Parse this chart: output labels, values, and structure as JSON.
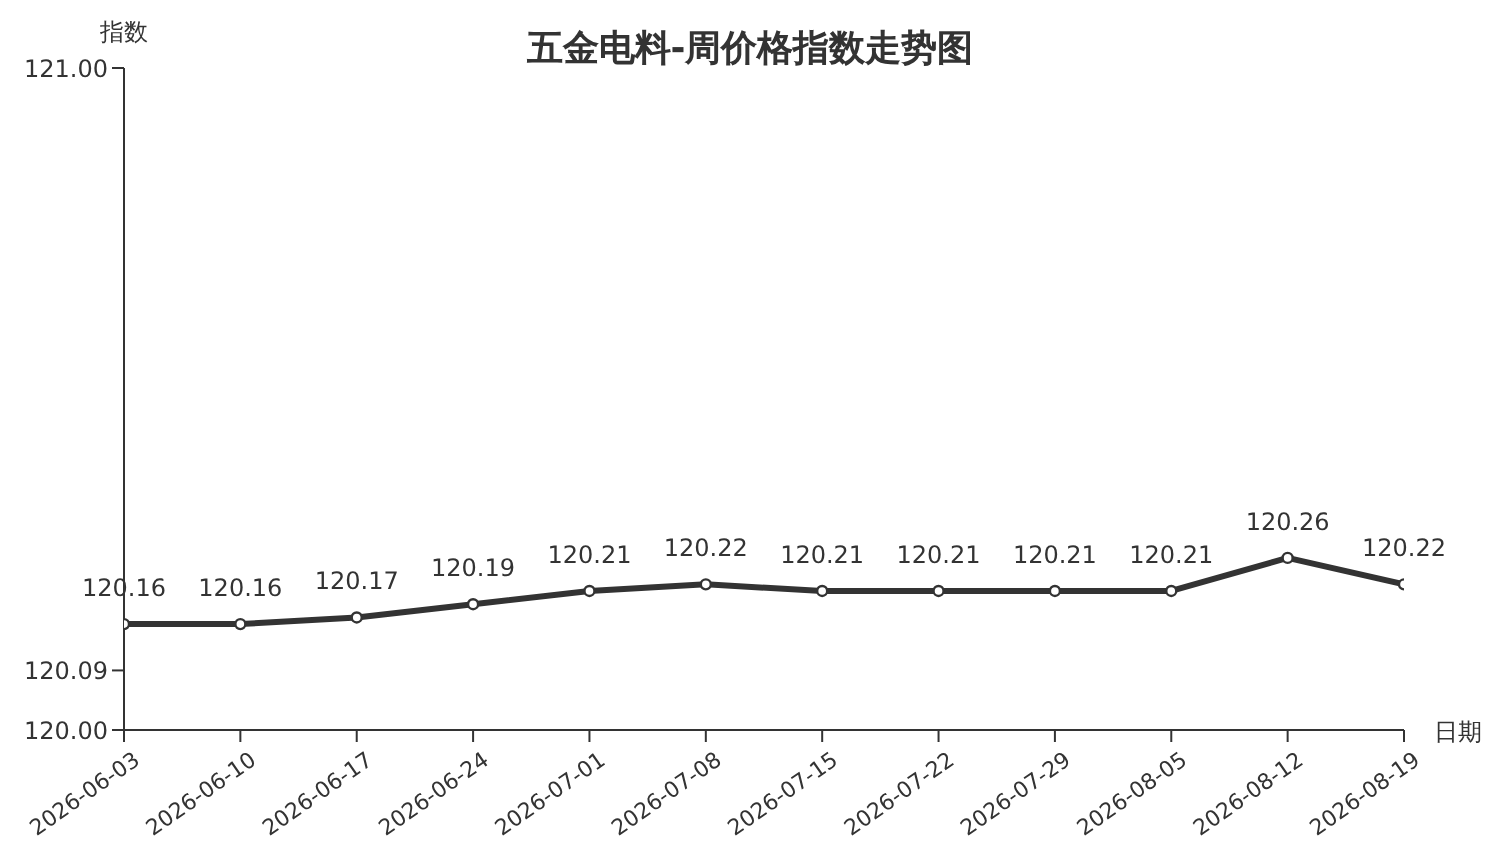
{
  "chart_data": {
    "type": "line",
    "title": "五金电料-周价格指数走势图",
    "xlabel": "日期",
    "ylabel": "指数",
    "categories": [
      "2026-06-03",
      "2026-06-10",
      "2026-06-17",
      "2026-06-24",
      "2026-07-01",
      "2026-07-08",
      "2026-07-15",
      "2026-07-22",
      "2026-07-29",
      "2026-08-05",
      "2026-08-12",
      "2026-08-19"
    ],
    "series": [
      {
        "color": "#333333",
        "values": [
          120.16,
          120.16,
          120.17,
          120.19,
          120.21,
          120.22,
          120.21,
          120.21,
          120.21,
          120.21,
          120.26,
          120.22
        ]
      }
    ],
    "ylim": [
      120,
      121
    ],
    "yticks": [
      {
        "value": 120,
        "label": "120.00"
      },
      {
        "value": 120.09,
        "label": "120.09"
      },
      {
        "value": 121,
        "label": "121.00"
      }
    ],
    "grid": false,
    "legend": false,
    "marker": "circle",
    "line_style": "solid",
    "data_labels": true
  }
}
